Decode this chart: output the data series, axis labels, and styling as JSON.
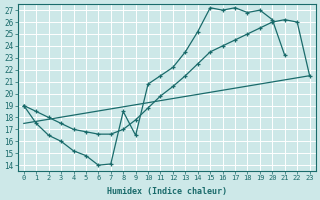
{
  "xlabel": "Humidex (Indice chaleur)",
  "xlim": [
    -0.5,
    23.5
  ],
  "ylim": [
    13.5,
    27.5
  ],
  "xticks": [
    0,
    1,
    2,
    3,
    4,
    5,
    6,
    7,
    8,
    9,
    10,
    11,
    12,
    13,
    14,
    15,
    16,
    17,
    18,
    19,
    20,
    21,
    22,
    23
  ],
  "yticks": [
    14,
    15,
    16,
    17,
    18,
    19,
    20,
    21,
    22,
    23,
    24,
    25,
    26,
    27
  ],
  "bg_color": "#cde8e8",
  "grid_color": "#b8d8d8",
  "line_color": "#1a6b6b",
  "curve1_x": [
    0,
    1,
    2,
    3,
    4,
    5,
    6,
    7,
    8,
    9,
    10,
    11,
    12,
    13,
    14,
    15,
    16,
    17,
    18,
    19,
    20,
    21
  ],
  "curve1_y": [
    19.0,
    17.5,
    16.5,
    16.0,
    15.2,
    14.8,
    14.0,
    14.1,
    18.5,
    16.5,
    20.8,
    21.5,
    22.2,
    23.5,
    25.2,
    27.2,
    27.0,
    27.2,
    26.8,
    27.0,
    26.2,
    23.2
  ],
  "curve2_x": [
    0,
    1,
    2,
    3,
    4,
    5,
    6,
    7,
    8,
    9,
    10,
    11,
    12,
    13,
    14,
    15,
    16,
    17,
    18,
    19,
    20,
    21,
    22,
    23
  ],
  "curve2_y": [
    19.0,
    18.5,
    18.0,
    17.5,
    17.0,
    16.8,
    16.6,
    16.6,
    17.0,
    17.8,
    18.8,
    19.8,
    20.6,
    21.5,
    22.5,
    23.5,
    24.0,
    24.5,
    25.0,
    25.5,
    26.0,
    26.2,
    26.0,
    21.5
  ],
  "trend_x": [
    0,
    23
  ],
  "trend_y": [
    17.5,
    21.5
  ]
}
